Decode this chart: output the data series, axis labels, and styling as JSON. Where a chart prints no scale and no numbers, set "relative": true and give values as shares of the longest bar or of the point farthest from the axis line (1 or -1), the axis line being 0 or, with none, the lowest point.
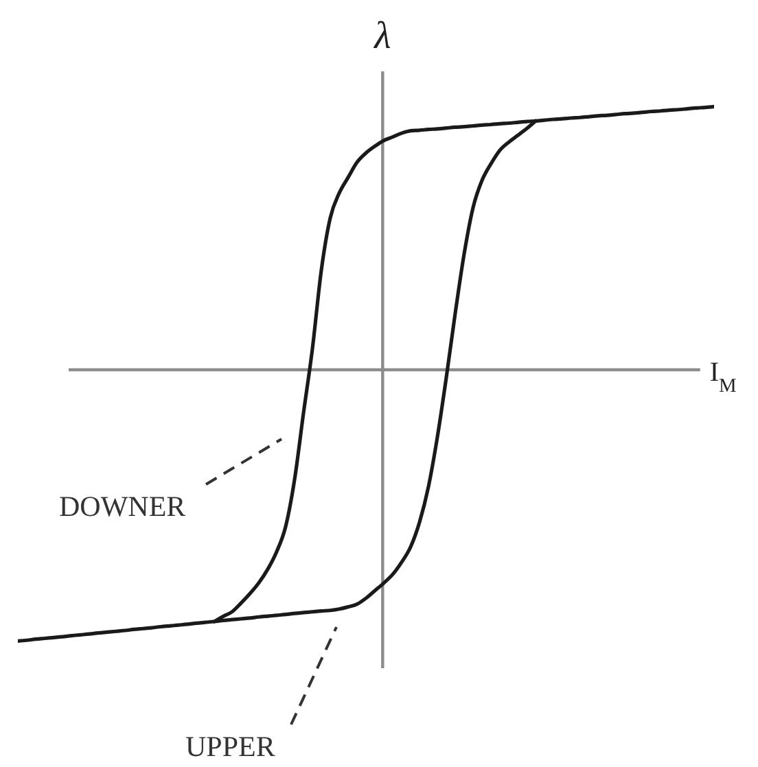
{
  "chart_data": {
    "type": "line",
    "xlabel": "I$_{M}$",
    "ylabel": "λ",
    "relative": true,
    "marker": "none",
    "categories": [
      null,
      null,
      null,
      null,
      null,
      null,
      null,
      null,
      null,
      null,
      null,
      null,
      null,
      null,
      null,
      null,
      null,
      null,
      null,
      null,
      null,
      null,
      null,
      null,
      null,
      null,
      null,
      null,
      null,
      null,
      null,
      null,
      null,
      null,
      null,
      null,
      null,
      null,
      null,
      null,
      null,
      null,
      null,
      null,
      null,
      null,
      null,
      null,
      null,
      null,
      null,
      null,
      null,
      null,
      null,
      null,
      null,
      null,
      null,
      null,
      null,
      null,
      null,
      null,
      null,
      null,
      null,
      null,
      null,
      null,
      null,
      null,
      null,
      null,
      null,
      null,
      null,
      null,
      null
    ],
    "series": [
      {
        "name": "DOWNER",
        "color": "#1a1a1a",
        "values": [
          null,
          null,
          null,
          null,
          null,
          null,
          null,
          null,
          null,
          null,
          null,
          null,
          null,
          null,
          null,
          null,
          null,
          null,
          null,
          null,
          null,
          null,
          -0.928,
          -0.909,
          -0.892,
          -0.86,
          -0.825,
          -0.785,
          -0.735,
          -0.67,
          -0.578,
          -0.405,
          -0.16,
          0.077,
          0.367,
          0.56,
          0.651,
          0.709,
          0.765,
          0.799,
          0.824,
          0.845,
          0.858,
          0.872,
          0.881,
          0.883,
          0.886,
          0.888,
          0.891,
          0.894,
          0.896,
          0.899,
          0.902,
          0.904,
          0.907,
          0.909,
          0.912,
          0.915,
          0.917,
          0.92,
          0.923,
          0.925,
          0.928,
          0.93,
          0.933,
          0.936,
          0.938,
          0.941,
          0.944,
          0.946,
          0.949,
          0.952,
          0.954,
          0.957,
          0.959,
          0.962,
          0.965,
          0.967,
          0.97
        ]
      },
      {
        "name": "UPPER",
        "color": "#1a1a1a",
        "values": [
          -1.0,
          -0.997,
          -0.993,
          -0.99,
          -0.987,
          -0.984,
          -0.98,
          -0.977,
          -0.974,
          -0.97,
          -0.967,
          -0.964,
          -0.961,
          -0.957,
          -0.954,
          -0.951,
          -0.947,
          -0.944,
          -0.941,
          -0.938,
          -0.934,
          -0.931,
          -0.928,
          -0.924,
          -0.921,
          -0.918,
          -0.915,
          -0.911,
          -0.908,
          -0.905,
          -0.902,
          -0.898,
          -0.895,
          -0.892,
          -0.889,
          -0.887,
          -0.882,
          -0.874,
          -0.864,
          -0.842,
          -0.814,
          -0.786,
          -0.754,
          -0.709,
          -0.653,
          -0.562,
          -0.431,
          -0.248,
          -0.029,
          0.208,
          0.427,
          0.598,
          0.698,
          0.759,
          0.809,
          0.839,
          0.864,
          0.889,
          0.917,
          null,
          null,
          null,
          null,
          null,
          null,
          null,
          null,
          null,
          null,
          null,
          null,
          null,
          null,
          null,
          null,
          null,
          null,
          null,
          null
        ]
      }
    ]
  }
}
